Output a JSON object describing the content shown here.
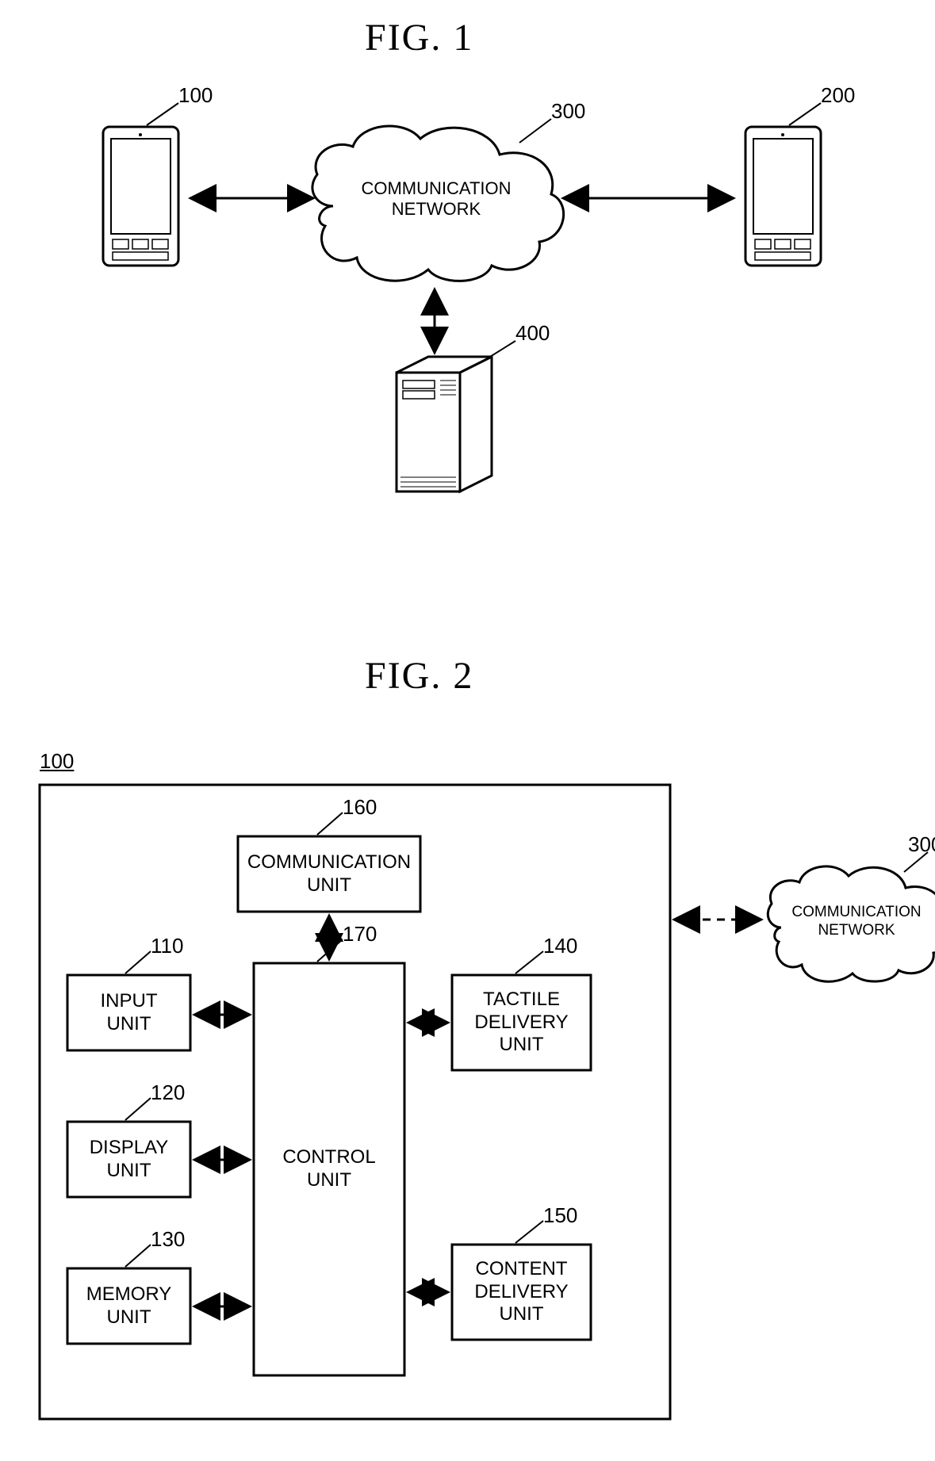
{
  "figure1": {
    "title": "FIG. 1",
    "nodes": {
      "phone_left": {
        "ref": "100"
      },
      "phone_right": {
        "ref": "200"
      },
      "cloud": {
        "ref": "300",
        "label": "COMMUNICATION\nNETWORK"
      },
      "server": {
        "ref": "400"
      }
    }
  },
  "figure2": {
    "title": "FIG. 2",
    "container_ref": "100",
    "cloud": {
      "ref": "300",
      "label": "COMMUNICATION\nNETWORK"
    },
    "blocks": {
      "input": {
        "ref": "110",
        "label": "INPUT\nUNIT"
      },
      "display": {
        "ref": "120",
        "label": "DISPLAY\nUNIT"
      },
      "memory": {
        "ref": "130",
        "label": "MEMORY\nUNIT"
      },
      "tactile": {
        "ref": "140",
        "label": "TACTILE\nDELIVERY\nUNIT"
      },
      "content": {
        "ref": "150",
        "label": "CONTENT\nDELIVERY\nUNIT"
      },
      "comm": {
        "ref": "160",
        "label": "COMMUNICATION\nUNIT"
      },
      "control": {
        "ref": "170",
        "label": "CONTROL\nUNIT"
      }
    }
  },
  "style": {
    "stroke": "#000000",
    "stroke_width": 3,
    "font_family_title": "Times New Roman",
    "font_family_label": "Arial",
    "title_fontsize": 48,
    "ref_fontsize": 26,
    "box_fontsize": 24,
    "cloud_text_fontsize": 22
  }
}
